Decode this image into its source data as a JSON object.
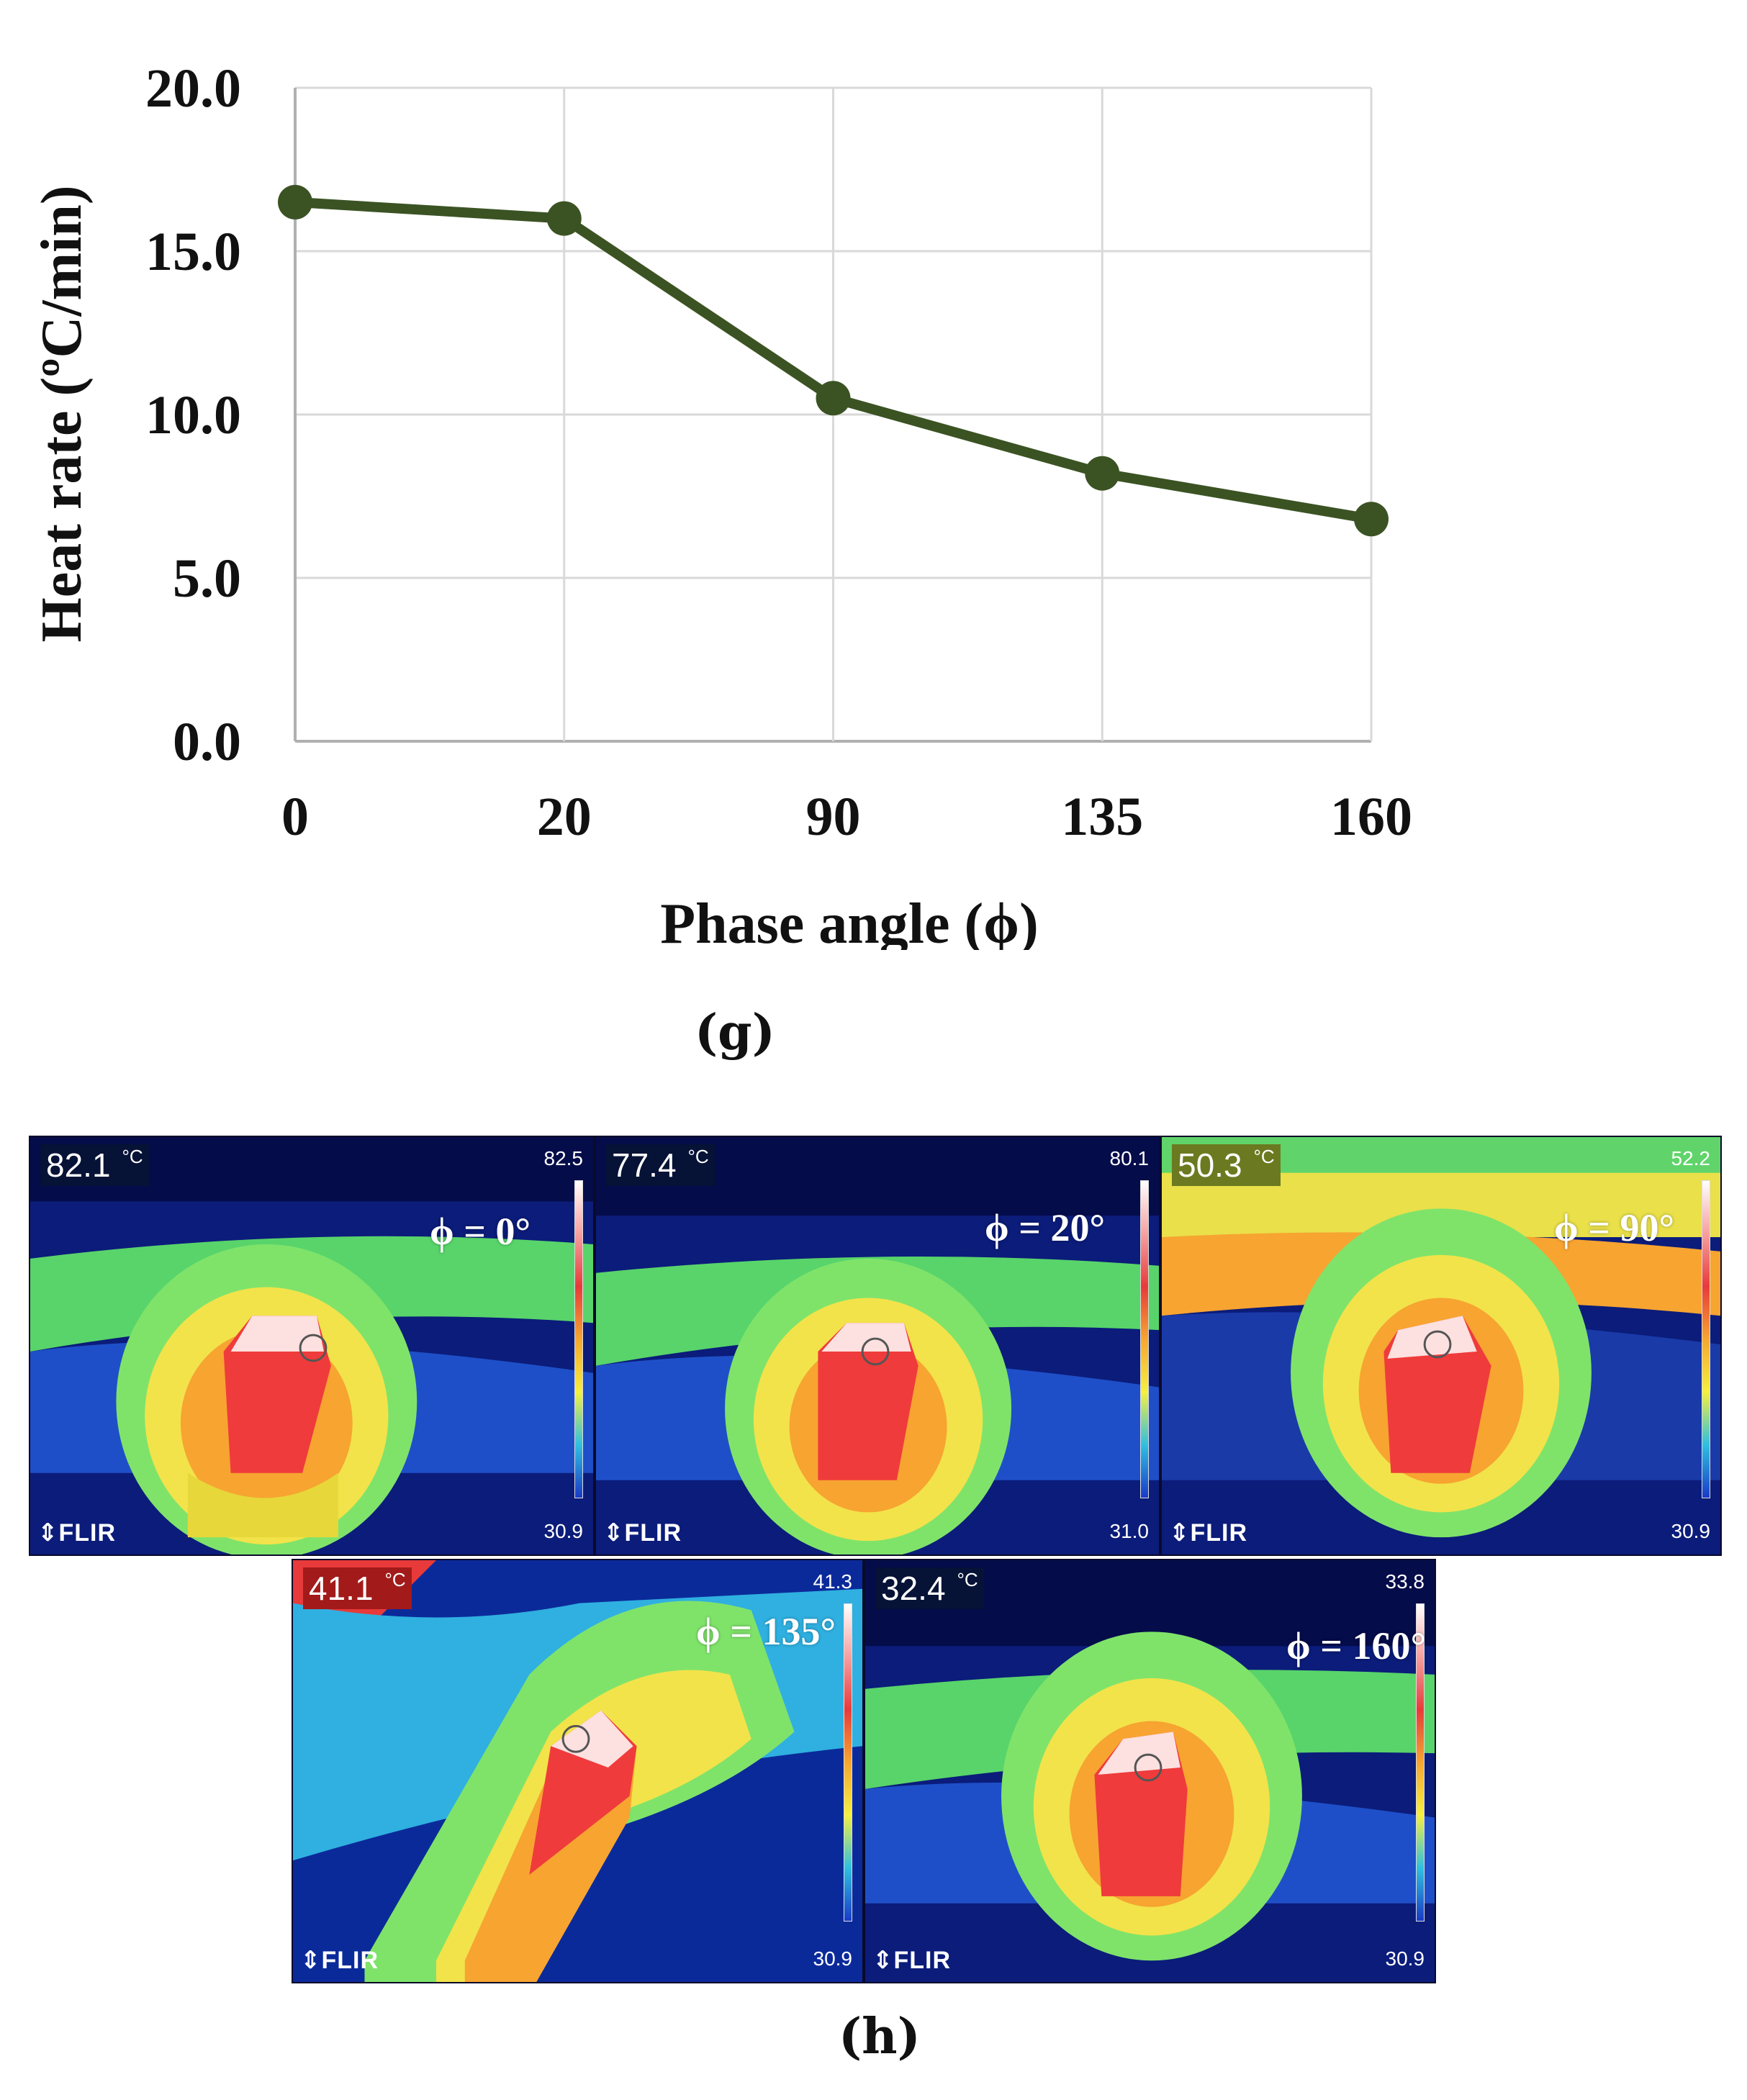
{
  "chart_data": {
    "type": "line",
    "categories": [
      "0",
      "20",
      "90",
      "135",
      "160"
    ],
    "values": [
      16.5,
      16.0,
      10.5,
      8.2,
      6.8
    ],
    "ylabel": "Heat rate (ºC/min)",
    "xlabel": "Phase angle (ϕ)",
    "ylim": [
      0,
      20
    ],
    "yticks": [
      "0.0",
      "5.0",
      "10.0",
      "15.0",
      "20.0"
    ],
    "grid": true,
    "color": "#3b5323"
  },
  "labels": {
    "g": "(g)",
    "h": "(h)"
  },
  "thermal_images": [
    {
      "reading": "82.1",
      "unit": "°C",
      "max": "82.5",
      "min": "30.9",
      "brand": "⇕FLIR",
      "phase": "ϕ = 0°"
    },
    {
      "reading": "77.4",
      "unit": "°C",
      "max": "80.1",
      "min": "31.0",
      "brand": "⇕FLIR",
      "phase": "ϕ = 20°"
    },
    {
      "reading": "50.3",
      "unit": "°C",
      "max": "52.2",
      "min": "30.9",
      "brand": "⇕FLIR",
      "phase": "ϕ = 90°"
    },
    {
      "reading": "41.1",
      "unit": "°C",
      "max": "41.3",
      "min": "30.9",
      "brand": "⇕FLIR",
      "phase": "ϕ = 135°"
    },
    {
      "reading": "32.4",
      "unit": "°C",
      "max": "33.8",
      "min": "30.9",
      "brand": "⇕FLIR",
      "phase": "ϕ = 160°"
    }
  ],
  "colors": {
    "line": "#3b5323",
    "grid": "#d9d9d9"
  }
}
